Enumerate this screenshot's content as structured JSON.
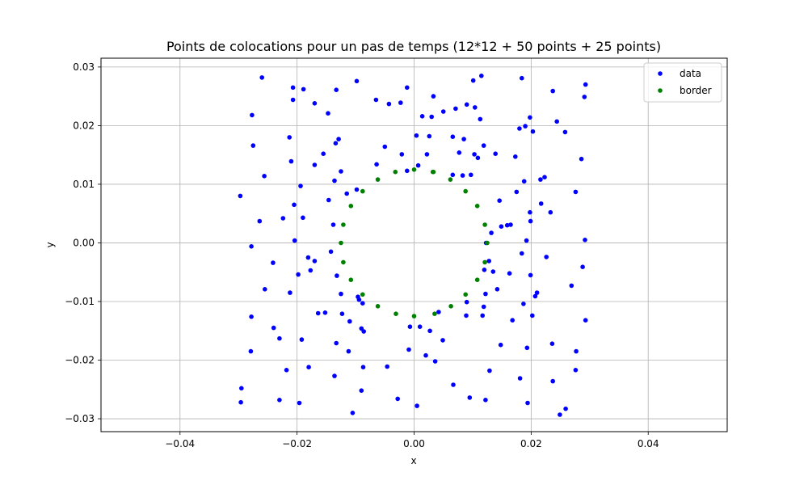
{
  "chart_data": {
    "type": "scatter",
    "title": "Points de colocations pour un pas de temps (12*12 + 50 points + 25 points)",
    "xlabel": "x",
    "ylabel": "y",
    "xlim": [
      -0.0535,
      0.0535
    ],
    "ylim": [
      -0.0322,
      0.0315
    ],
    "x_ticks": [
      -0.04,
      -0.02,
      0.0,
      0.02,
      0.04
    ],
    "x_tick_labels": [
      "−0.04",
      "−0.02",
      "0.00",
      "0.02",
      "0.04"
    ],
    "y_ticks": [
      -0.03,
      -0.02,
      -0.01,
      0.0,
      0.01,
      0.02,
      0.03
    ],
    "y_tick_labels": [
      "−0.03",
      "−0.02",
      "−0.01",
      "0.00",
      "0.01",
      "0.02",
      "0.03"
    ],
    "grid": true,
    "legend_position": "top-right",
    "series": [
      {
        "name": "data",
        "color": "#0000ff",
        "points": [
          [
            -0.0297,
            0.008
          ],
          [
            -0.0295,
            -0.0248
          ],
          [
            -0.0296,
            -0.0272
          ],
          [
            -0.0278,
            -0.0006
          ],
          [
            -0.0278,
            -0.0126
          ],
          [
            -0.0279,
            -0.0185
          ],
          [
            -0.0277,
            0.0218
          ],
          [
            -0.0275,
            0.0166
          ],
          [
            -0.0264,
            0.0037
          ],
          [
            -0.026,
            0.0282
          ],
          [
            -0.0256,
            0.0114
          ],
          [
            -0.0255,
            -0.0079
          ],
          [
            -0.0241,
            -0.0034
          ],
          [
            -0.024,
            -0.0145
          ],
          [
            -0.023,
            -0.0163
          ],
          [
            -0.023,
            -0.0268
          ],
          [
            -0.0224,
            0.0042
          ],
          [
            -0.0218,
            -0.0217
          ],
          [
            -0.0213,
            0.018
          ],
          [
            -0.0212,
            -0.0085
          ],
          [
            -0.021,
            0.0139
          ],
          [
            -0.0207,
            0.0265
          ],
          [
            -0.0207,
            0.0244
          ],
          [
            -0.0205,
            0.0065
          ],
          [
            -0.0204,
            0.0004
          ],
          [
            -0.0198,
            -0.0054
          ],
          [
            -0.0196,
            -0.0273
          ],
          [
            -0.0194,
            0.0097
          ],
          [
            -0.0192,
            -0.0165
          ],
          [
            -0.019,
            0.0043
          ],
          [
            -0.0189,
            0.0262
          ],
          [
            -0.0181,
            -0.0025
          ],
          [
            -0.018,
            -0.0212
          ],
          [
            -0.0177,
            -0.0047
          ],
          [
            -0.017,
            0.0238
          ],
          [
            -0.017,
            -0.0031
          ],
          [
            -0.017,
            0.0133
          ],
          [
            -0.0164,
            -0.012
          ],
          [
            -0.0155,
            0.0152
          ],
          [
            -0.0152,
            -0.0119
          ],
          [
            -0.0147,
            0.0221
          ],
          [
            -0.0146,
            0.0073
          ],
          [
            -0.0142,
            -0.0015
          ],
          [
            -0.0138,
            0.0031
          ],
          [
            -0.0136,
            -0.0227
          ],
          [
            -0.0136,
            0.0106
          ],
          [
            -0.0134,
            0.017
          ],
          [
            -0.0133,
            -0.0171
          ],
          [
            -0.0133,
            0.0261
          ],
          [
            -0.0132,
            -0.0056
          ],
          [
            -0.0129,
            0.0177
          ],
          [
            -0.0125,
            0.0122
          ],
          [
            -0.0125,
            -0.0087
          ],
          [
            -0.0123,
            -0.0121
          ],
          [
            -0.0115,
            0.0084
          ],
          [
            -0.0112,
            -0.0185
          ],
          [
            -0.011,
            -0.0134
          ],
          [
            -0.0105,
            -0.029
          ],
          [
            -0.0098,
            0.0091
          ],
          [
            -0.0098,
            0.0276
          ],
          [
            -0.0096,
            -0.0092
          ],
          [
            -0.0094,
            -0.0097
          ],
          [
            -0.009,
            -0.0146
          ],
          [
            -0.009,
            -0.0252
          ],
          [
            -0.0087,
            -0.0212
          ],
          [
            -0.0088,
            -0.0103
          ],
          [
            -0.0086,
            -0.0151
          ],
          [
            -0.0065,
            0.0244
          ],
          [
            -0.0064,
            0.0134
          ],
          [
            -0.005,
            0.0164
          ],
          [
            -0.0046,
            -0.0211
          ],
          [
            -0.0043,
            0.0237
          ],
          [
            -0.0028,
            -0.0266
          ],
          [
            -0.0023,
            0.0239
          ],
          [
            -0.0021,
            0.0151
          ],
          [
            -0.0012,
            0.0265
          ],
          [
            -0.0012,
            0.0123
          ],
          [
            -0.0009,
            -0.0182
          ],
          [
            -0.0007,
            -0.0143
          ],
          [
            0.0004,
            0.0183
          ],
          [
            0.0005,
            -0.0278
          ],
          [
            0.0007,
            0.0132
          ],
          [
            0.001,
            -0.0143
          ],
          [
            0.0014,
            0.0216
          ],
          [
            0.002,
            -0.0192
          ],
          [
            0.0022,
            0.0151
          ],
          [
            0.0026,
            0.0182
          ],
          [
            0.0027,
            -0.015
          ],
          [
            0.003,
            0.0215
          ],
          [
            0.0033,
            0.025
          ],
          [
            0.0036,
            -0.0202
          ],
          [
            0.0042,
            -0.0118
          ],
          [
            0.0049,
            -0.0166
          ],
          [
            0.005,
            0.0224
          ],
          [
            0.0066,
            0.0116
          ],
          [
            0.0067,
            -0.0242
          ],
          [
            0.0066,
            0.0181
          ],
          [
            0.0071,
            0.0229
          ],
          [
            0.0077,
            0.0154
          ],
          [
            0.0083,
            0.0115
          ],
          [
            0.0085,
            0.0177
          ],
          [
            0.0089,
            -0.0124
          ],
          [
            0.009,
            0.0236
          ],
          [
            0.009,
            -0.0101
          ],
          [
            0.0095,
            -0.0264
          ],
          [
            0.0097,
            0.0116
          ],
          [
            0.0101,
            0.0277
          ],
          [
            0.0103,
            0.0151
          ],
          [
            0.0104,
            0.0231
          ],
          [
            0.0109,
            0.0145
          ],
          [
            0.0113,
            0.0211
          ],
          [
            0.0115,
            0.0285
          ],
          [
            0.0117,
            -0.0124
          ],
          [
            0.0119,
            0.0166
          ],
          [
            0.012,
            -0.0046
          ],
          [
            0.0119,
            -0.0109
          ],
          [
            0.0122,
            -0.0087
          ],
          [
            0.0122,
            -0.0268
          ],
          [
            0.0123,
            0.0
          ],
          [
            0.0128,
            -0.0031
          ],
          [
            0.0129,
            -0.0218
          ],
          [
            0.0132,
            0.0017
          ],
          [
            0.0135,
            -0.0049
          ],
          [
            0.0139,
            0.0152
          ],
          [
            0.0142,
            -0.0079
          ],
          [
            0.0146,
            0.0072
          ],
          [
            0.0148,
            -0.0174
          ],
          [
            0.0149,
            0.0028
          ],
          [
            0.0159,
            0.003
          ],
          [
            0.0163,
            -0.0052
          ],
          [
            0.0165,
            0.0031
          ],
          [
            0.0168,
            -0.0132
          ],
          [
            0.0173,
            0.0147
          ],
          [
            0.0175,
            0.0087
          ],
          [
            0.018,
            0.0195
          ],
          [
            0.0181,
            -0.0231
          ],
          [
            0.0184,
            0.0281
          ],
          [
            0.0184,
            -0.0018
          ],
          [
            0.0187,
            -0.0104
          ],
          [
            0.0188,
            0.0105
          ],
          [
            0.019,
            0.0199
          ],
          [
            0.0192,
            0.0004
          ],
          [
            0.0193,
            -0.0179
          ],
          [
            0.0194,
            -0.0273
          ],
          [
            0.0198,
            0.0214
          ],
          [
            0.0198,
            0.0052
          ],
          [
            0.0199,
            0.0037
          ],
          [
            0.0199,
            -0.0055
          ],
          [
            0.0202,
            -0.0124
          ],
          [
            0.0203,
            0.019
          ],
          [
            0.0207,
            -0.0091
          ],
          [
            0.021,
            -0.0085
          ],
          [
            0.0216,
            0.0108
          ],
          [
            0.0217,
            0.0067
          ],
          [
            0.0223,
            0.0112
          ],
          [
            0.0226,
            -0.0024
          ],
          [
            0.0233,
            0.0052
          ],
          [
            0.0236,
            -0.0172
          ],
          [
            0.0237,
            0.0259
          ],
          [
            0.0237,
            -0.0236
          ],
          [
            0.0244,
            0.0207
          ],
          [
            0.0249,
            -0.0293
          ],
          [
            0.0258,
            0.0189
          ],
          [
            0.0259,
            -0.0283
          ],
          [
            0.0269,
            -0.0073
          ],
          [
            0.0276,
            0.0087
          ],
          [
            0.0276,
            -0.0217
          ],
          [
            0.0277,
            -0.0185
          ],
          [
            0.0286,
            0.0143
          ],
          [
            0.0288,
            -0.0041
          ],
          [
            0.0291,
            0.0249
          ],
          [
            0.0292,
            0.0005
          ],
          [
            0.0293,
            -0.0132
          ],
          [
            0.0293,
            0.027
          ]
        ]
      },
      {
        "name": "border",
        "color": "#008000",
        "points": [
          [
            0.0125,
            0.0
          ],
          [
            0.0121,
            0.0031
          ],
          [
            0.0108,
            0.0063
          ],
          [
            0.0088,
            0.0088
          ],
          [
            0.0062,
            0.0108
          ],
          [
            0.0032,
            0.0121
          ],
          [
            0.0,
            0.0125
          ],
          [
            -0.0032,
            0.0121
          ],
          [
            -0.0062,
            0.0108
          ],
          [
            -0.0088,
            0.0088
          ],
          [
            -0.0108,
            0.0063
          ],
          [
            -0.0121,
            0.0031
          ],
          [
            -0.0125,
            0.0
          ],
          [
            -0.0121,
            -0.0033
          ],
          [
            -0.0108,
            -0.0063
          ],
          [
            -0.0088,
            -0.0088
          ],
          [
            -0.0062,
            -0.0108
          ],
          [
            -0.0031,
            -0.0121
          ],
          [
            0.0,
            -0.0125
          ],
          [
            0.0035,
            -0.0121
          ],
          [
            0.0063,
            -0.0108
          ],
          [
            0.0088,
            -0.0088
          ],
          [
            0.0108,
            -0.0063
          ],
          [
            0.0121,
            -0.0033
          ],
          [
            0.0033,
            0.0121
          ]
        ]
      }
    ]
  }
}
